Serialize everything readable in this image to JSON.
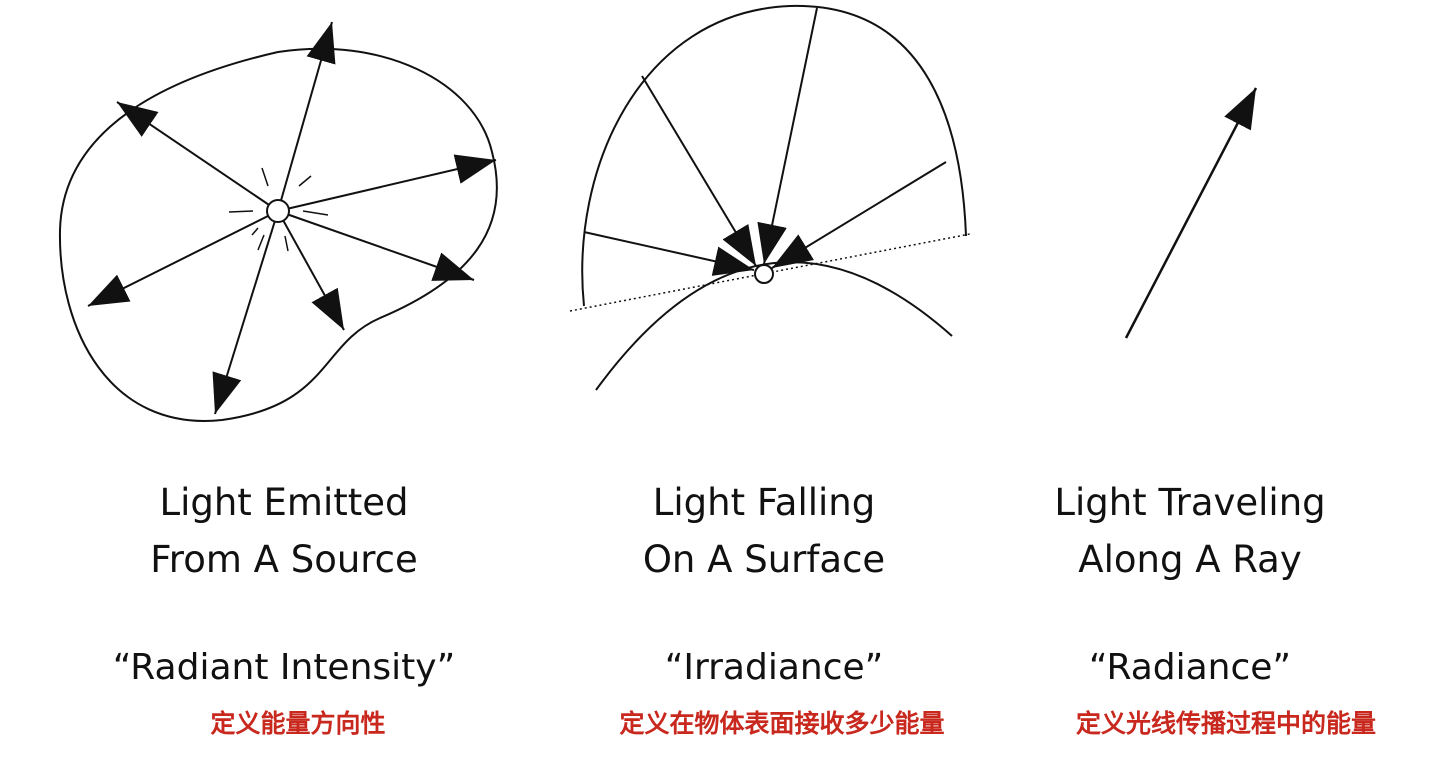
{
  "colors": {
    "line": "#111111",
    "note": "#c8281e",
    "background": "#ffffff"
  },
  "panels": [
    {
      "caption_line1": "Light Emitted",
      "caption_line2": "From A Source",
      "term": "“Radiant Intensity”",
      "note": "定义能量方向性"
    },
    {
      "caption_line1": "Light Falling",
      "caption_line2": "On A Surface",
      "term": "“Irradiance”",
      "note": "定义在物体表面接收多少能量"
    },
    {
      "caption_line1": "Light Traveling",
      "caption_line2": "Along A Ray",
      "term": "“Radiance”",
      "note": "定义光线传播过程中的能量"
    }
  ]
}
